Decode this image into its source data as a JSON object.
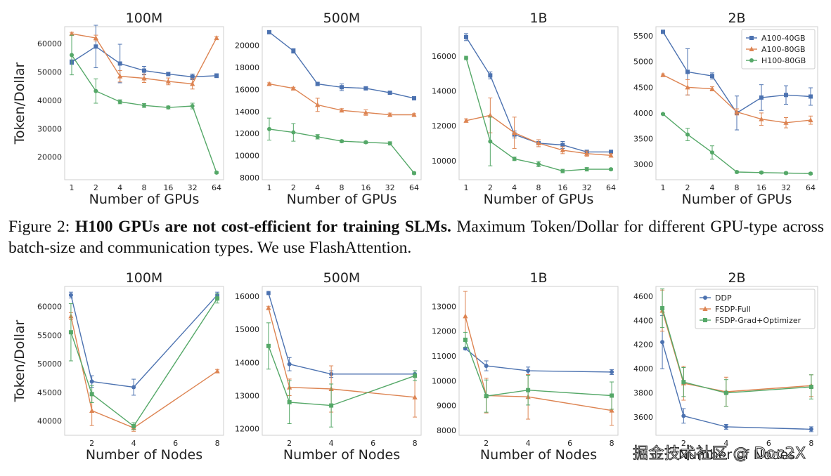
{
  "caption": {
    "prefix": "Figure 2:",
    "bold": "H100 GPUs are not cost-efficient for training SLMs.",
    "rest": " Maximum Token/Dollar for different GPU-type across batch-size and communication types. We use FlashAttention."
  },
  "watermark": "掘金技术社区 @ Doc2X",
  "chart_data": [
    {
      "type": "line",
      "title": "100M",
      "xlabel": "Number of GPUs",
      "ylabel": "Token/Dollar",
      "xscale": "log2",
      "x": [
        1,
        2,
        4,
        8,
        16,
        32,
        64
      ],
      "xticks": [
        "1",
        "2",
        "4",
        "8",
        "16",
        "32",
        "64"
      ],
      "ylim": [
        12000,
        66000
      ],
      "yticks": [
        20000,
        30000,
        40000,
        50000,
        60000
      ],
      "series": [
        {
          "name": "A100-40GB",
          "values": [
            53500,
            59000,
            53000,
            50500,
            49300,
            48300,
            48700
          ],
          "err": [
            800,
            7500,
            6800,
            1500,
            600,
            1000,
            700
          ]
        },
        {
          "name": "A100-80GB",
          "values": [
            63500,
            62000,
            48500,
            47800,
            46700,
            45800,
            62000
          ],
          "err": [
            500,
            1000,
            2000,
            1500,
            1200,
            1800,
            500
          ]
        },
        {
          "name": "H100-80GB",
          "values": [
            56000,
            43300,
            39500,
            38200,
            37500,
            38000,
            14500
          ],
          "err": [
            7000,
            4300,
            700,
            700,
            500,
            1000,
            300
          ]
        }
      ]
    },
    {
      "type": "line",
      "title": "500M",
      "xlabel": "Number of GPUs",
      "ylabel": "",
      "xscale": "log2",
      "x": [
        1,
        2,
        4,
        8,
        16,
        32,
        64
      ],
      "xticks": [
        "1",
        "2",
        "4",
        "8",
        "16",
        "32",
        "64"
      ],
      "ylim": [
        7800,
        21700
      ],
      "yticks": [
        8000,
        10000,
        12000,
        14000,
        16000,
        18000,
        20000
      ],
      "series": [
        {
          "name": "A100-40GB",
          "values": [
            21200,
            19500,
            16500,
            16200,
            16100,
            15700,
            15200
          ],
          "err": [
            150,
            200,
            150,
            300,
            100,
            100,
            150
          ]
        },
        {
          "name": "A100-80GB",
          "values": [
            16500,
            16100,
            14600,
            14100,
            13900,
            13700,
            13700
          ],
          "err": [
            100,
            100,
            600,
            150,
            250,
            150,
            100
          ]
        },
        {
          "name": "H100-80GB",
          "values": [
            12400,
            12100,
            11700,
            11300,
            11200,
            11100,
            8400
          ],
          "err": [
            1000,
            800,
            200,
            100,
            100,
            150,
            100
          ]
        }
      ]
    },
    {
      "type": "line",
      "title": "1B",
      "xlabel": "Number of GPUs",
      "ylabel": "",
      "xscale": "log2",
      "x": [
        1,
        2,
        4,
        8,
        16,
        32,
        64
      ],
      "xticks": [
        "1",
        "2",
        "4",
        "8",
        "16",
        "32",
        "64"
      ],
      "ylim": [
        8900,
        17700
      ],
      "yticks": [
        10000,
        12000,
        14000,
        16000
      ],
      "series": [
        {
          "name": "A100-40GB",
          "values": [
            17100,
            14900,
            11500,
            11000,
            10900,
            10500,
            10500
          ],
          "err": [
            200,
            200,
            200,
            200,
            200,
            100,
            100
          ]
        },
        {
          "name": "A100-80GB",
          "values": [
            12300,
            12600,
            11600,
            11000,
            10600,
            10400,
            10300
          ],
          "err": [
            100,
            1000,
            900,
            200,
            200,
            150,
            100
          ]
        },
        {
          "name": "H100-80GB",
          "values": [
            15900,
            11100,
            10100,
            9800,
            9400,
            9500,
            9500
          ],
          "err": [
            100,
            1400,
            100,
            150,
            100,
            100,
            50
          ]
        }
      ]
    },
    {
      "type": "line",
      "title": "2B",
      "xlabel": "Number of GPUs",
      "ylabel": "",
      "xscale": "log2",
      "x": [
        1,
        2,
        4,
        8,
        16,
        32,
        64
      ],
      "xticks": [
        "1",
        "2",
        "4",
        "8",
        "16",
        "32",
        "64"
      ],
      "ylim": [
        2700,
        5680
      ],
      "yticks": [
        3000,
        3500,
        4000,
        4500,
        5000,
        5500
      ],
      "legend": "top-right",
      "series": [
        {
          "name": "A100-40GB",
          "values": [
            5580,
            4800,
            4720,
            4000,
            4300,
            4350,
            4320
          ],
          "err": [
            30,
            450,
            60,
            330,
            250,
            180,
            170
          ]
        },
        {
          "name": "A100-80GB",
          "values": [
            4740,
            4500,
            4470,
            4020,
            3880,
            3810,
            3860
          ],
          "err": [
            20,
            150,
            40,
            60,
            120,
            100,
            80
          ]
        },
        {
          "name": "H100-80GB",
          "values": [
            3980,
            3580,
            3230,
            2850,
            2840,
            2830,
            2820
          ],
          "err": [
            10,
            120,
            130,
            20,
            20,
            20,
            15
          ]
        }
      ]
    },
    {
      "type": "line",
      "title": "100M",
      "xlabel": "Number of Nodes",
      "ylabel": "Token/Dollar",
      "x": [
        1,
        2,
        4,
        8
      ],
      "xlim": [
        0.7,
        8.3
      ],
      "xticks": [
        "2",
        "4",
        "6",
        "8"
      ],
      "ylim": [
        37500,
        63500
      ],
      "yticks": [
        40000,
        45000,
        50000,
        55000,
        60000
      ],
      "series": [
        {
          "name": "DDP",
          "values": [
            62000,
            46900,
            45900,
            62000
          ],
          "err": [
            500,
            1000,
            1400,
            500
          ]
        },
        {
          "name": "FSDP-Full",
          "values": [
            58300,
            41800,
            38800,
            48700
          ],
          "err": [
            600,
            2600,
            600,
            300
          ]
        },
        {
          "name": "FSDP-Grad+Optimizer",
          "values": [
            55500,
            44700,
            39100,
            61400
          ],
          "err": [
            5000,
            1500,
            600,
            800
          ]
        }
      ]
    },
    {
      "type": "line",
      "title": "500M",
      "xlabel": "Number of Nodes",
      "ylabel": "",
      "x": [
        1,
        2,
        4,
        8
      ],
      "xlim": [
        0.7,
        8.3
      ],
      "xticks": [
        "2",
        "4",
        "6",
        "8"
      ],
      "ylim": [
        11800,
        16300
      ],
      "yticks": [
        12000,
        13000,
        14000,
        15000,
        16000
      ],
      "series": [
        {
          "name": "DDP",
          "values": [
            16100,
            13950,
            13650,
            13650
          ],
          "err": [
            50,
            200,
            100,
            100
          ]
        },
        {
          "name": "FSDP-Full",
          "values": [
            15650,
            13250,
            13200,
            12950
          ],
          "err": [
            50,
            250,
            700,
            600
          ]
        },
        {
          "name": "FSDP-Grad+Optimizer",
          "values": [
            14500,
            12800,
            12700,
            13600
          ],
          "err": [
            700,
            650,
            650,
            150
          ]
        }
      ]
    },
    {
      "type": "line",
      "title": "1B",
      "xlabel": "Number of Nodes",
      "ylabel": "",
      "x": [
        1,
        2,
        4,
        8
      ],
      "xlim": [
        0.7,
        8.3
      ],
      "xticks": [
        "2",
        "4",
        "6",
        "8"
      ],
      "ylim": [
        7800,
        13800
      ],
      "yticks": [
        8000,
        9000,
        10000,
        11000,
        12000,
        13000
      ],
      "series": [
        {
          "name": "DDP",
          "values": [
            11300,
            10600,
            10400,
            10350
          ],
          "err": [
            50,
            200,
            150,
            100
          ]
        },
        {
          "name": "FSDP-Full",
          "values": [
            12600,
            9400,
            9350,
            8800
          ],
          "err": [
            1000,
            700,
            900,
            600
          ]
        },
        {
          "name": "FSDP-Grad+Optimizer",
          "values": [
            11650,
            9380,
            9620,
            9400
          ],
          "err": [
            300,
            650,
            600,
            550
          ]
        }
      ]
    },
    {
      "type": "line",
      "title": "2B",
      "xlabel": "Number of Nodes",
      "ylabel": "",
      "x": [
        1,
        2,
        4,
        8
      ],
      "xlim": [
        0.7,
        8.3
      ],
      "xticks": [
        "2",
        "4",
        "6",
        "8"
      ],
      "ylim": [
        3450,
        4680
      ],
      "yticks": [
        3600,
        3800,
        4000,
        4200,
        4400,
        4600
      ],
      "legend": "top-right",
      "series": [
        {
          "name": "DDP",
          "values": [
            4220,
            3610,
            3520,
            3500
          ],
          "err": [
            220,
            60,
            20,
            20
          ]
        },
        {
          "name": "FSDP-Full",
          "values": [
            4480,
            3880,
            3810,
            3860
          ],
          "err": [
            170,
            140,
            120,
            90
          ]
        },
        {
          "name": "FSDP-Grad+Optimizer",
          "values": [
            4500,
            3890,
            3800,
            3850
          ],
          "err": [
            160,
            120,
            110,
            100
          ]
        }
      ]
    }
  ]
}
